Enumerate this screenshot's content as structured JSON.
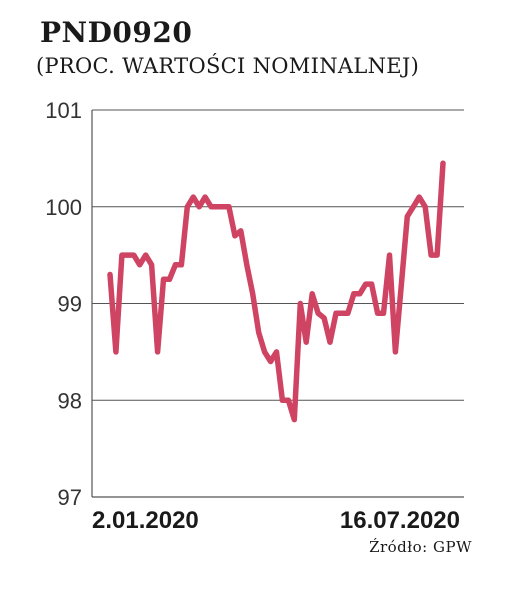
{
  "title": "PND0920",
  "subtitle": "(PROC. WARTOŚCI NOMINALNEJ)",
  "source": "Źródło: GPW",
  "chart_data": {
    "type": "line",
    "x_start_label": "2.01.2020",
    "x_end_label": "16.07.2020",
    "ylim": [
      97,
      101
    ],
    "yticks": [
      97,
      98,
      99,
      100,
      101
    ],
    "grid": true,
    "series": [
      {
        "color": "#cf4463",
        "values": [
          99.3,
          98.5,
          99.5,
          99.5,
          99.5,
          99.4,
          99.5,
          99.4,
          98.5,
          99.25,
          99.25,
          99.4,
          99.4,
          100.0,
          100.1,
          100.0,
          100.1,
          100.0,
          100.0,
          100.0,
          100.0,
          99.7,
          99.75,
          99.4,
          99.1,
          98.7,
          98.5,
          98.4,
          98.5,
          98.0,
          98.0,
          97.8,
          99.0,
          98.6,
          99.1,
          98.9,
          98.85,
          98.6,
          98.9,
          98.9,
          98.9,
          99.1,
          99.1,
          99.2,
          99.2,
          98.9,
          98.9,
          99.5,
          98.5,
          99.2,
          99.9,
          100.0,
          100.1,
          100.0,
          99.5,
          99.5,
          100.45
        ]
      }
    ]
  }
}
